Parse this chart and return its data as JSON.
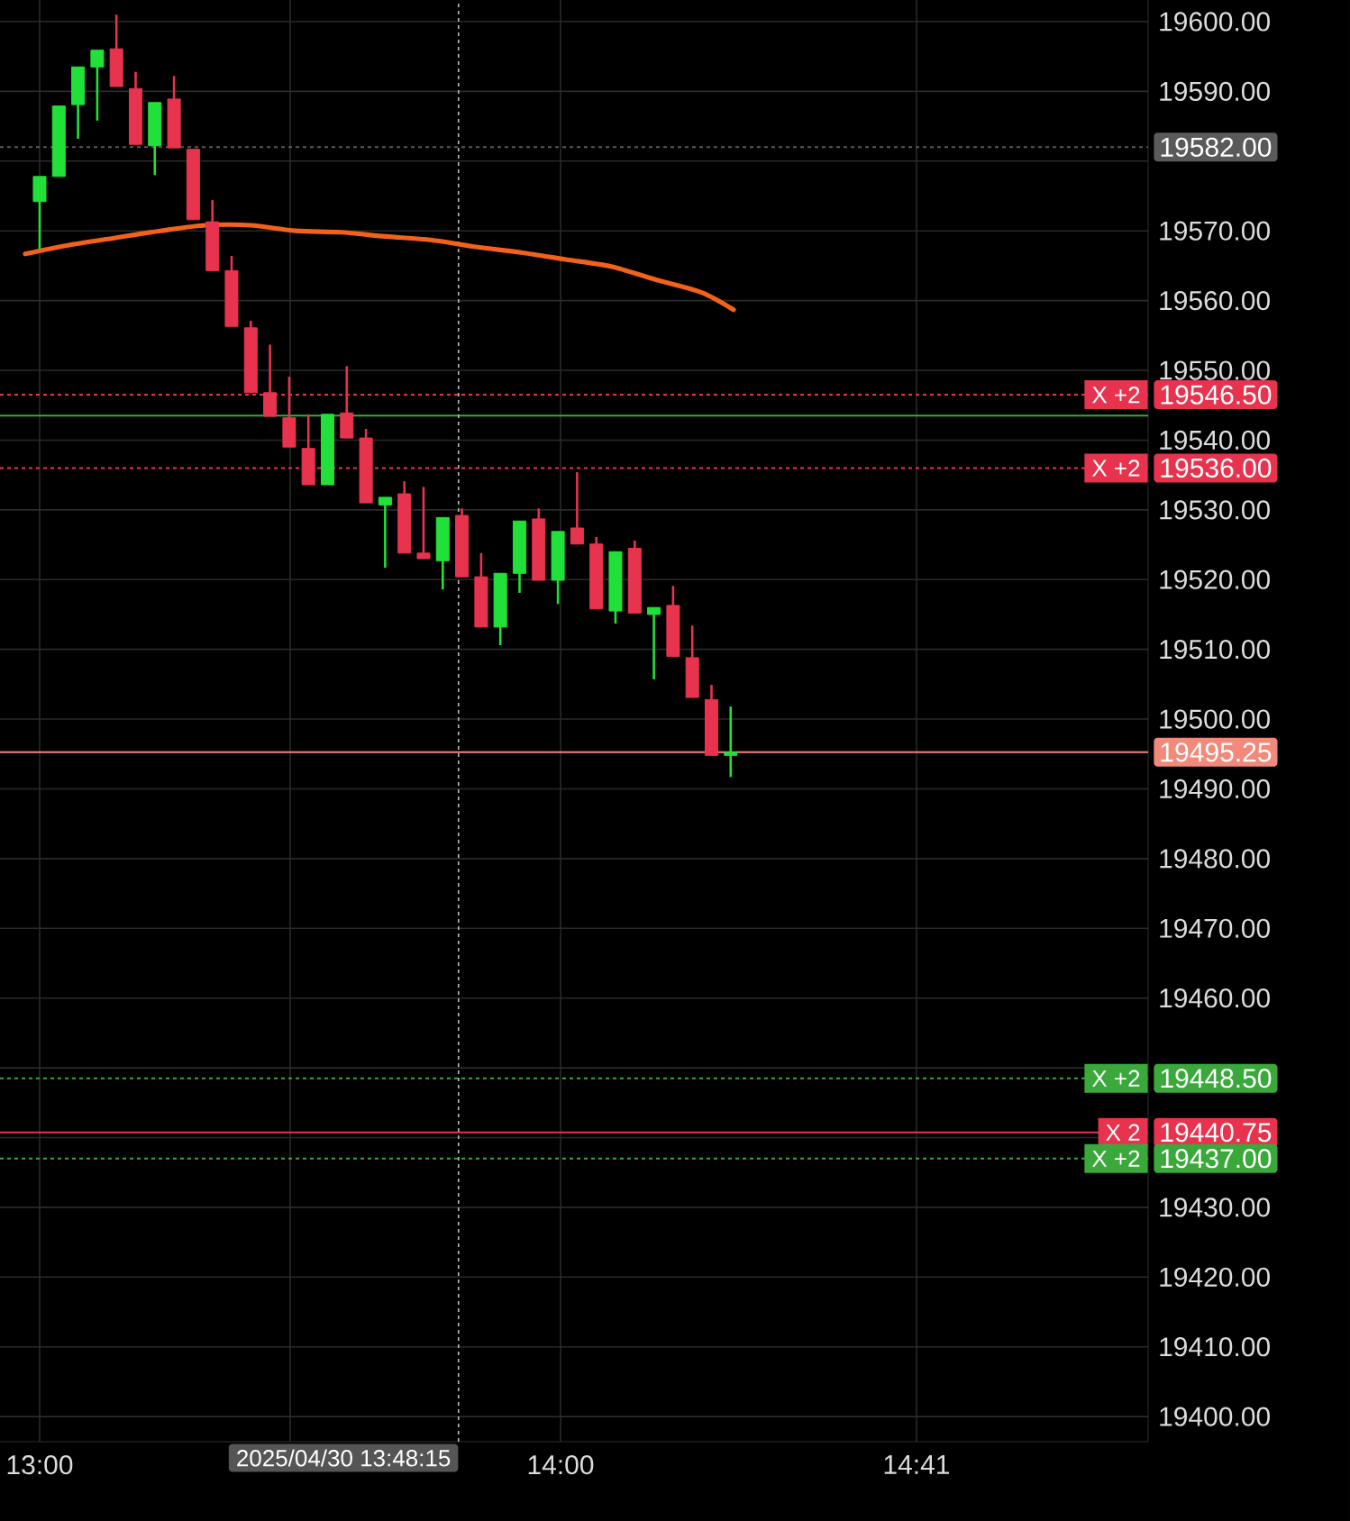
{
  "chart_data": {
    "type": "candlestick",
    "x": [
      13.0,
      13.0369,
      13.0737,
      13.1106,
      13.1474,
      13.1843,
      13.2211,
      13.258,
      13.2948,
      13.3317,
      13.3685,
      13.4054,
      13.4422,
      13.4791,
      13.5159,
      13.5528,
      13.5896,
      13.6265,
      13.6633,
      13.7002,
      13.737,
      13.7739,
      13.8107,
      13.8476,
      13.8844,
      13.9213,
      13.9581,
      13.995,
      14.0318,
      14.0687,
      14.1055,
      14.1424,
      14.1792,
      14.2161,
      14.2529,
      14.2898,
      14.3266
    ],
    "ohlc": [
      [
        19574.2,
        19577.8,
        19567.4,
        19577.8
      ],
      [
        19577.8,
        19587.9,
        19577.8,
        19587.9
      ],
      [
        19588.1,
        19593.5,
        19583.2,
        19593.5
      ],
      [
        19593.5,
        19595.9,
        19585.8,
        19595.9
      ],
      [
        19596.1,
        19601.0,
        19590.7,
        19590.7
      ],
      [
        19590.4,
        19592.8,
        19582.4,
        19582.4
      ],
      [
        19582.2,
        19588.4,
        19578.0,
        19588.4
      ],
      [
        19588.9,
        19592.2,
        19581.9,
        19581.9
      ],
      [
        19581.7,
        19581.7,
        19571.6,
        19571.6
      ],
      [
        19571.3,
        19574.4,
        19564.3,
        19564.3
      ],
      [
        19564.3,
        19566.4,
        19556.3,
        19556.3
      ],
      [
        19556.1,
        19557.1,
        19546.8,
        19546.8
      ],
      [
        19546.8,
        19553.7,
        19543.4,
        19543.4
      ],
      [
        19543.2,
        19549.1,
        19539.0,
        19539.0
      ],
      [
        19538.8,
        19543.7,
        19533.6,
        19533.6
      ],
      [
        19533.6,
        19543.7,
        19533.6,
        19543.7
      ],
      [
        19543.9,
        19550.6,
        19540.3,
        19540.3
      ],
      [
        19540.3,
        19541.6,
        19531.0,
        19531.0
      ],
      [
        19530.7,
        19531.8,
        19521.7,
        19531.8
      ],
      [
        19532.3,
        19534.1,
        19523.8,
        19523.8
      ],
      [
        19523.8,
        19533.3,
        19523.0,
        19523.0
      ],
      [
        19522.7,
        19528.9,
        19518.6,
        19528.9
      ],
      [
        19529.2,
        19530.2,
        19520.4,
        19520.4
      ],
      [
        19520.4,
        19523.8,
        19513.2,
        19513.2
      ],
      [
        19513.2,
        19520.9,
        19510.6,
        19520.9
      ],
      [
        19520.9,
        19528.4,
        19518.1,
        19528.4
      ],
      [
        19528.7,
        19530.2,
        19519.9,
        19519.9
      ],
      [
        19519.9,
        19526.9,
        19516.5,
        19526.9
      ],
      [
        19527.4,
        19535.4,
        19525.1,
        19525.1
      ],
      [
        19525.1,
        19526.1,
        19515.8,
        19515.8
      ],
      [
        19515.5,
        19524.0,
        19513.7,
        19524.0
      ],
      [
        19524.5,
        19525.6,
        19515.2,
        19515.2
      ],
      [
        19515.0,
        19516.0,
        19505.7,
        19516.0
      ],
      [
        19516.3,
        19519.1,
        19509.0,
        19509.0
      ],
      [
        19508.8,
        19513.4,
        19503.1,
        19503.1
      ],
      [
        19502.8,
        19504.9,
        19494.8,
        19494.8
      ],
      [
        19494.8,
        19501.8,
        19491.7,
        19495.25
      ]
    ],
    "colors": [
      "#22e03a",
      "#22e03a",
      "#22e03a",
      "#22e03a",
      "#e8334f",
      "#e8334f",
      "#22e03a",
      "#e8334f",
      "#e8334f",
      "#e8334f",
      "#e8334f",
      "#e8334f",
      "#e8334f",
      "#e8334f",
      "#e8334f",
      "#22e03a",
      "#e8334f",
      "#e8334f",
      "#22e03a",
      "#e8334f",
      "#e8334f",
      "#22e03a",
      "#e8334f",
      "#e8334f",
      "#22e03a",
      "#22e03a",
      "#e8334f",
      "#22e03a",
      "#e8334f",
      "#e8334f",
      "#22e03a",
      "#e8334f",
      "#22e03a",
      "#e8334f",
      "#e8334f",
      "#e8334f",
      "#22e03a"
    ],
    "series": [
      {
        "type": "line",
        "color": "#f2621b",
        "x": [
          12.9723,
          13.0588,
          13.1453,
          13.2318,
          13.3183,
          13.4048,
          13.4913,
          13.5779,
          13.6644,
          13.7509,
          13.8374,
          13.9239,
          14.0104,
          14.0969,
          14.1834,
          14.2699,
          14.3322
        ],
        "values": [
          19566.7,
          19568.0,
          19569.0,
          19570.0,
          19570.8,
          19570.8,
          19570.0,
          19569.8,
          19569.2,
          19568.7,
          19567.7,
          19566.9,
          19565.9,
          19564.9,
          19563.0,
          19561.2,
          19558.7
        ]
      }
    ],
    "xlim": [
      12.9239,
      15.128
    ],
    "ylim": [
      19396.4,
      19603.1
    ],
    "xticks": [
      {
        "value": 13.0,
        "label": "13:00"
      },
      {
        "value": 13.481,
        "label": null
      },
      {
        "value": 14.0,
        "label": "14:00"
      },
      {
        "value": 14.6833,
        "label": "14:41"
      }
    ],
    "yticks": [
      {
        "value": 19400,
        "label": "19400.00"
      },
      {
        "value": 19410,
        "label": "19410.00"
      },
      {
        "value": 19420,
        "label": "19420.00"
      },
      {
        "value": 19430,
        "label": "19430.00"
      },
      {
        "value": 19440,
        "label": null
      },
      {
        "value": 19450,
        "label": null
      },
      {
        "value": 19460,
        "label": "19460.00"
      },
      {
        "value": 19470,
        "label": "19470.00"
      },
      {
        "value": 19480,
        "label": "19480.00"
      },
      {
        "value": 19490,
        "label": "19490.00"
      },
      {
        "value": 19500,
        "label": "19500.00"
      },
      {
        "value": 19510,
        "label": "19510.00"
      },
      {
        "value": 19520,
        "label": "19520.00"
      },
      {
        "value": 19530,
        "label": "19530.00"
      },
      {
        "value": 19540,
        "label": "19540.00"
      },
      {
        "value": 19550,
        "label": "19550.00"
      },
      {
        "value": 19560,
        "label": "19560.00"
      },
      {
        "value": 19570,
        "label": "19570.00"
      },
      {
        "value": 19580,
        "label": null
      },
      {
        "value": 19590,
        "label": "19590.00"
      },
      {
        "value": 19600,
        "label": "19600.00"
      }
    ],
    "grid": true,
    "ref_lines": [
      {
        "axis": "y",
        "value": 19582.0,
        "label": "19582.00",
        "color": "#5a5a5a",
        "line_style": "dotted"
      },
      {
        "axis": "y",
        "value": 19543.5,
        "color": "#3aa83a",
        "line_style": "solid"
      },
      {
        "axis": "y",
        "value": 19546.5,
        "label": "19546.50",
        "color": "#e8334f",
        "line_style": "dotted"
      },
      {
        "axis": "y",
        "value": 19536.0,
        "label": "19536.00",
        "color": "#e8334f",
        "line_style": "dotted"
      },
      {
        "axis": "y",
        "value": 19495.25,
        "label": "19495.25",
        "color": "#f2897a",
        "line_style": "solid"
      },
      {
        "axis": "y",
        "value": 19448.5,
        "label": "19448.50",
        "color": "#3aa83a",
        "line_style": "dotted"
      },
      {
        "axis": "y",
        "value": 19440.75,
        "label": "19440.75",
        "color": "#e8334f",
        "line_style": "solid"
      },
      {
        "axis": "y",
        "value": 19437.0,
        "label": "19437.00",
        "color": "#3aa83a",
        "line_style": "dotted"
      },
      {
        "axis": "x",
        "value": 13.804167,
        "color": "#bbbbbb",
        "line_style": "dotted"
      }
    ],
    "annotations": [
      "2025/04/30 13:48:15",
      {
        "text": "X  +2",
        "y": 19546.5
      },
      {
        "text": "X  +2",
        "y": 19536.0
      },
      {
        "text": "X  +2",
        "y": 19448.5
      },
      {
        "text": "X  2",
        "y": 19440.75
      },
      {
        "text": "X  +2",
        "y": 19437.0
      }
    ]
  }
}
